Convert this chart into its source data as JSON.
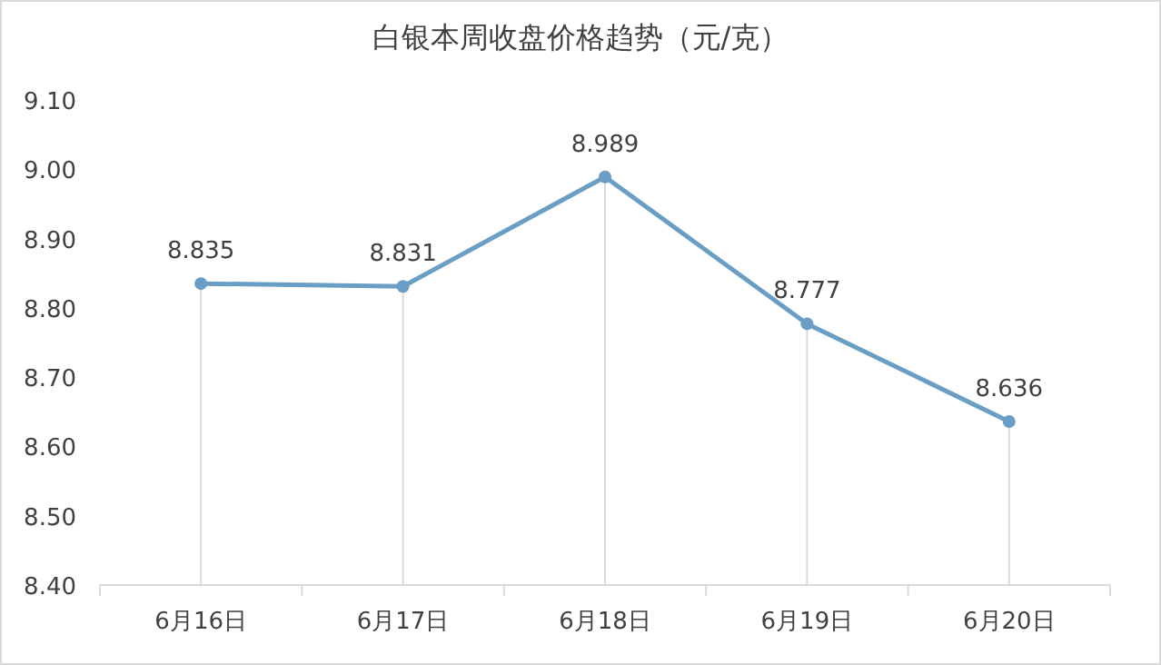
{
  "chart_data": {
    "type": "line",
    "title": "白银本周收盘价格趋势（元/克）",
    "categories": [
      "6月16日",
      "6月17日",
      "6月18日",
      "6月19日",
      "6月20日"
    ],
    "values": [
      8.835,
      8.831,
      8.989,
      8.777,
      8.636
    ],
    "color": "#6a9ec4",
    "marker": "circle",
    "data_labels": true,
    "ylim": [
      8.4,
      9.1
    ],
    "yticks": [
      {
        "value": 8.4,
        "label": "8.40"
      },
      {
        "value": 8.5,
        "label": "8.50"
      },
      {
        "value": 8.6,
        "label": "8.60"
      },
      {
        "value": 8.7,
        "label": "8.70"
      },
      {
        "value": 8.8,
        "label": "8.80"
      },
      {
        "value": 8.9,
        "label": "8.90"
      },
      {
        "value": 9.0,
        "label": "9.00"
      },
      {
        "value": 9.1,
        "label": "9.10"
      }
    ]
  }
}
